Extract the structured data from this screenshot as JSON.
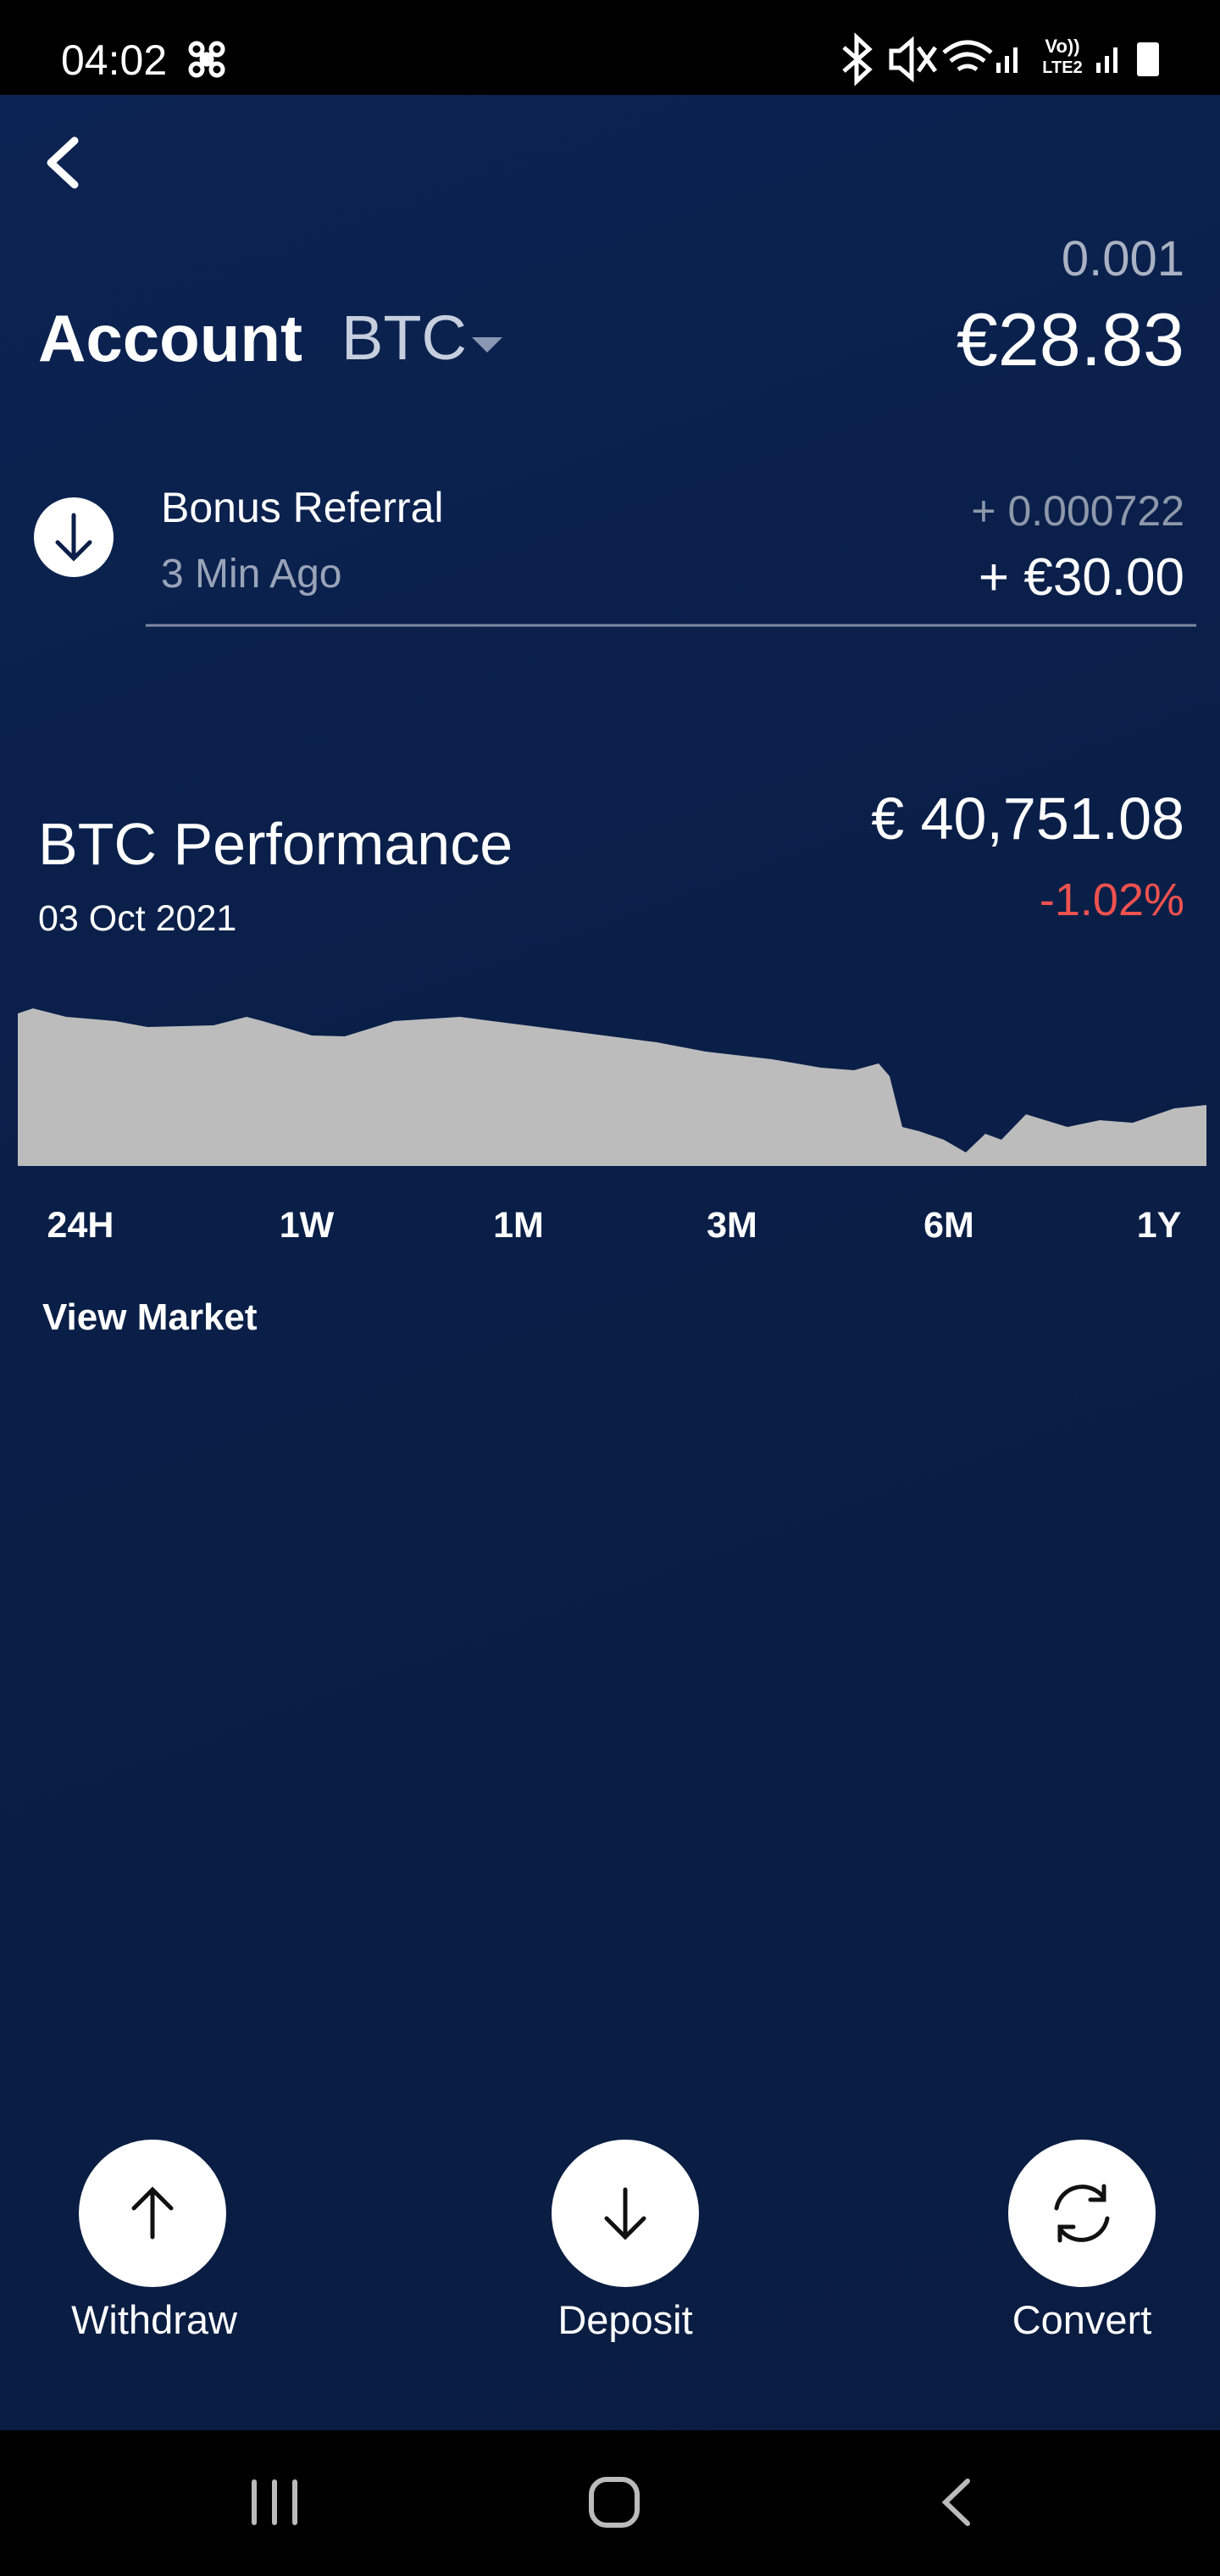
{
  "status_bar": {
    "time": "04:02"
  },
  "account": {
    "title": "Account",
    "currency": "BTC",
    "crypto_balance": "0.001",
    "fiat_balance": "€28.83"
  },
  "transaction": {
    "title": "Bonus Referral",
    "time": "3 Min Ago",
    "crypto_amount": "+ 0.000722",
    "fiat_amount": "+ €30.00"
  },
  "performance": {
    "title": "BTC Performance",
    "date": "03 Oct 2021",
    "price": "€ 40,751.08",
    "change": "-1.02%",
    "ranges": [
      "24H",
      "1W",
      "1M",
      "3M",
      "6M",
      "1Y"
    ],
    "link": "View Market"
  },
  "actions": [
    "Withdraw",
    "Deposit",
    "Convert"
  ]
}
